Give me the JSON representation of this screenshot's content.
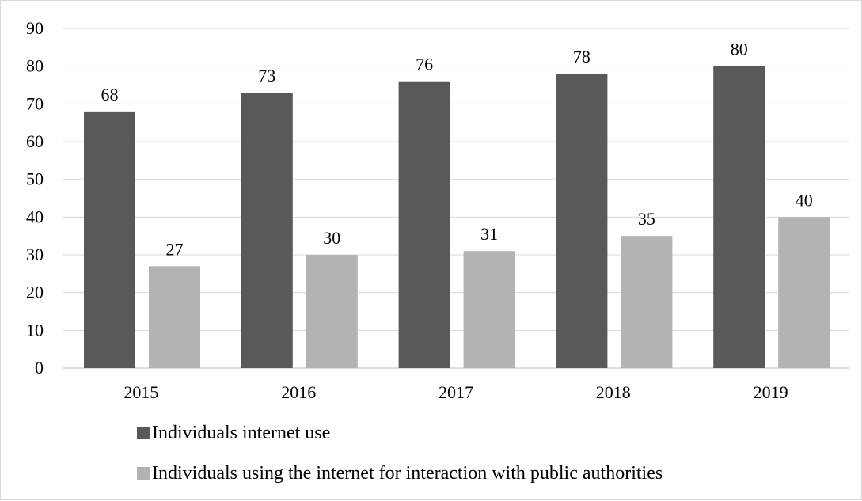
{
  "chart_data": {
    "type": "bar",
    "categories": [
      "2015",
      "2016",
      "2017",
      "2018",
      "2019"
    ],
    "series": [
      {
        "name": "Individuals internet use",
        "values": [
          68,
          73,
          76,
          78,
          80
        ],
        "color": "#595959"
      },
      {
        "name": "Individuals using the internet for interaction with public authorities",
        "values": [
          27,
          30,
          31,
          35,
          40
        ],
        "color": "#b3b3b3"
      }
    ],
    "ylim": [
      0,
      90
    ],
    "yticks": [
      0,
      10,
      20,
      30,
      40,
      50,
      60,
      70,
      80,
      90
    ],
    "grid": true,
    "legend_position": "bottom-left",
    "data_labels": true
  }
}
